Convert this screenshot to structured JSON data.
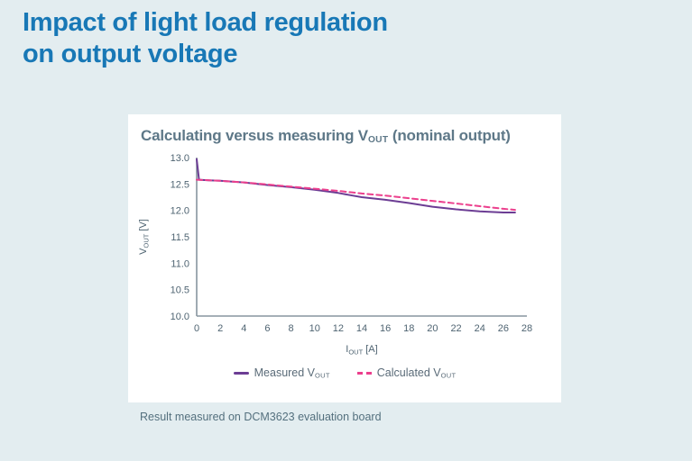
{
  "page": {
    "background_color": "#e3edf0",
    "heading_line1": "Impact of light load regulation",
    "heading_line2": "on output voltage",
    "heading_color": "#1878b6",
    "caption": "Result measured on DCM3623 evaluation board"
  },
  "card": {
    "title_prefix": "Calculating versus measuring V",
    "title_sub": "OUT",
    "title_suffix": " (nominal output)"
  },
  "chart_data": {
    "type": "line",
    "title": "Calculating versus measuring V_OUT (nominal output)",
    "xlabel": "I_OUT [A]",
    "ylabel": "V_OUT [V]",
    "xlabel_parts": {
      "main": "I",
      "sub": "OUT",
      "unit": " [A]"
    },
    "ylabel_parts": {
      "main": "V",
      "sub": "OUT",
      "unit": " [V]"
    },
    "xlim": [
      0,
      28
    ],
    "ylim": [
      10.0,
      13.0
    ],
    "xticks": [
      0,
      2,
      4,
      6,
      8,
      10,
      12,
      14,
      16,
      18,
      20,
      22,
      24,
      26,
      28
    ],
    "ytick_labels": [
      "13.0",
      "12.5",
      "12.0",
      "11.5",
      "11.0",
      "10.5",
      "10.0"
    ],
    "grid": false,
    "legend_position": "bottom",
    "axis_color": "#87959f",
    "series": [
      {
        "name": "Measured V_OUT",
        "label_prefix": "Measured V",
        "label_sub": "OUT",
        "color": "#6c3d94",
        "style": "solid",
        "x": [
          0,
          0.2,
          1,
          2,
          4,
          6,
          8,
          10,
          12,
          13,
          14,
          16,
          18,
          20,
          22,
          24,
          26,
          27
        ],
        "y": [
          12.97,
          12.58,
          12.57,
          12.56,
          12.53,
          12.48,
          12.44,
          12.39,
          12.33,
          12.29,
          12.25,
          12.2,
          12.14,
          12.07,
          12.02,
          11.98,
          11.96,
          11.96
        ]
      },
      {
        "name": "Calculated V_OUT",
        "label_prefix": "Calculated V",
        "label_sub": "OUT",
        "color": "#ec3f8d",
        "style": "dashed",
        "x": [
          0,
          2,
          4,
          6,
          8,
          10,
          12,
          14,
          16,
          18,
          20,
          22,
          24,
          26,
          27
        ],
        "y": [
          12.58,
          12.56,
          12.53,
          12.49,
          12.45,
          12.41,
          12.37,
          12.32,
          12.28,
          12.23,
          12.18,
          12.13,
          12.08,
          12.03,
          12.01
        ]
      }
    ]
  }
}
